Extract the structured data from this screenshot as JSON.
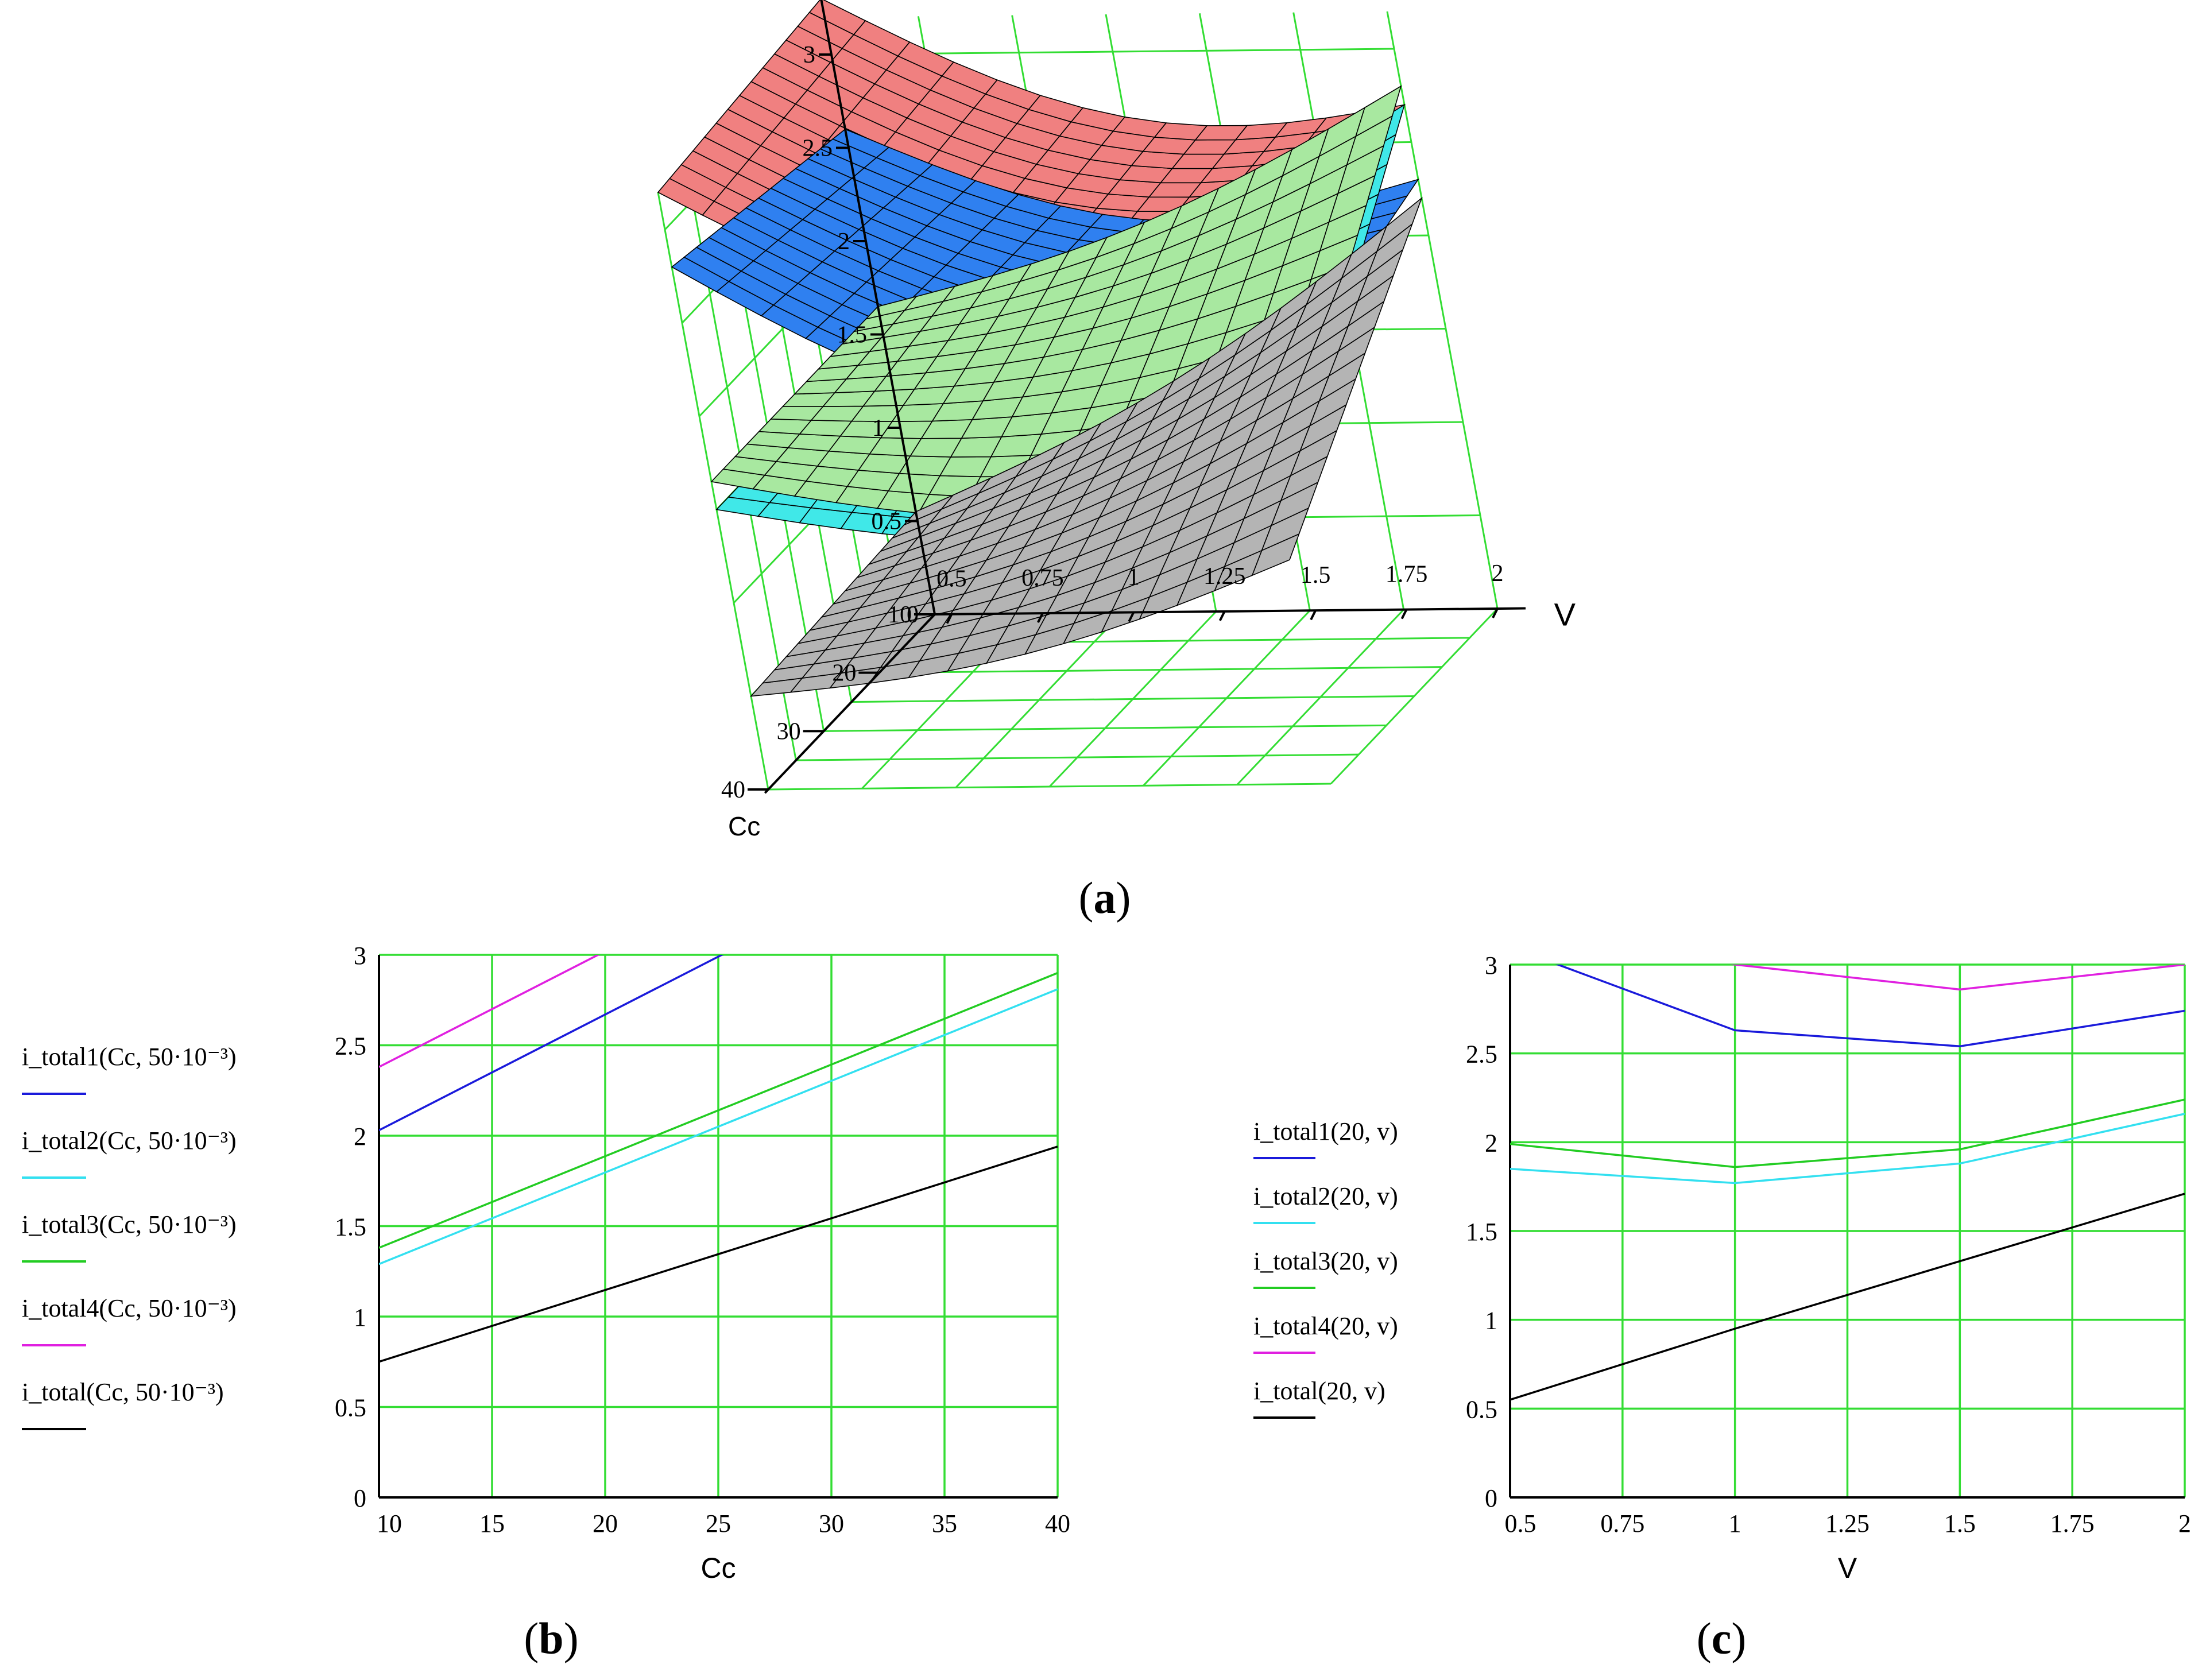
{
  "colors": {
    "grid": "#33dd33",
    "axis": "#000000",
    "i_total1": "#1a1adb",
    "i_total2": "#33e0f0",
    "i_total3": "#22cc22",
    "i_total4": "#e020e0",
    "i_total": "#000000",
    "surface_red": "#f08080",
    "surface_blue": "#2f80f0",
    "surface_cyan": "#40e8e8",
    "surface_green": "#a8e8a0",
    "surface_gray": "#b4b4b4"
  },
  "panels": {
    "a": {
      "label_open": "(",
      "label_letter": "a",
      "label_close": ")"
    },
    "b": {
      "label_open": "(",
      "label_letter": "b",
      "label_close": ")"
    },
    "c": {
      "label_open": "(",
      "label_letter": "c",
      "label_close": ")"
    }
  },
  "chart_data": [
    {
      "id": "a",
      "type": "surface",
      "x_axis_label": "V",
      "y_axis_label": "Cc",
      "x_ticks": [
        "0.5",
        "0.75",
        "1",
        "1.25",
        "1.5",
        "1.75",
        "2"
      ],
      "y_ticks": [
        "10",
        "20",
        "30",
        "40"
      ],
      "z_ticks": [
        "0",
        "0.5",
        "1",
        "1.5",
        "2",
        "2.5",
        "3"
      ],
      "zlim": [
        0,
        3
      ],
      "surfaces": [
        {
          "color": "surface_red",
          "z_at_corners": {
            "v_min_cc_min": 3.3,
            "v_max_cc_min": 2.7,
            "v_min_cc_max": 3.2,
            "v_max_cc_max": 2.55
          }
        },
        {
          "color": "surface_blue",
          "z_at_corners": {
            "v_min_cc_min": 2.6,
            "v_max_cc_min": 2.3,
            "v_min_cc_max": 2.8,
            "v_max_cc_max": 2.0
          }
        },
        {
          "color": "surface_cyan",
          "z_at_corners": {
            "v_min_cc_min": 1.5,
            "v_max_cc_min": 2.7,
            "v_min_cc_max": 1.5,
            "v_max_cc_max": 1.4
          }
        },
        {
          "color": "surface_green",
          "z_at_corners": {
            "v_min_cc_min": 1.65,
            "v_max_cc_min": 2.8,
            "v_min_cc_max": 1.65,
            "v_max_cc_max": 1.5
          }
        },
        {
          "color": "surface_gray",
          "z_at_corners": {
            "v_min_cc_min": 0.55,
            "v_max_cc_min": 2.2,
            "v_min_cc_max": 0.5,
            "v_max_cc_max": 1.2
          }
        }
      ]
    },
    {
      "id": "b",
      "type": "line",
      "xlabel": "Cc",
      "x_ticks": [
        "10",
        "15",
        "20",
        "25",
        "30",
        "35",
        "40"
      ],
      "y_ticks": [
        "0",
        "0.5",
        "1",
        "1.5",
        "2",
        "2.5",
        "3"
      ],
      "xlim": [
        10,
        40
      ],
      "ylim": [
        0,
        3
      ],
      "series": [
        {
          "name": "i_total1(Cc, 50·10⁻³)",
          "color": "i_total1",
          "x": [
            10,
            40
          ],
          "y": [
            2.03,
            3.95
          ]
        },
        {
          "name": "i_total2(Cc, 50·10⁻³)",
          "color": "i_total2",
          "x": [
            10,
            40
          ],
          "y": [
            1.29,
            2.81
          ]
        },
        {
          "name": "i_total3(Cc, 50·10⁻³)",
          "color": "i_total3",
          "x": [
            10,
            40
          ],
          "y": [
            1.38,
            2.9
          ]
        },
        {
          "name": "i_total4(Cc, 50·10⁻³)",
          "color": "i_total4",
          "x": [
            10,
            40
          ],
          "y": [
            2.38,
            4.3
          ]
        },
        {
          "name": "i_total(Cc, 50·10⁻³)",
          "color": "i_total",
          "x": [
            10,
            40
          ],
          "y": [
            0.75,
            1.94
          ]
        }
      ]
    },
    {
      "id": "c",
      "type": "line",
      "xlabel": "V",
      "x_ticks": [
        "0.5",
        "0.75",
        "1",
        "1.25",
        "1.5",
        "1.75",
        "2"
      ],
      "y_ticks": [
        "0",
        "0.5",
        "1",
        "1.5",
        "2",
        "2.5",
        "3"
      ],
      "xlim": [
        0.5,
        2
      ],
      "ylim": [
        0,
        3
      ],
      "series": [
        {
          "name": "i_total1(20, v)",
          "color": "i_total1",
          "x": [
            0.5,
            1,
            1.5,
            2
          ],
          "y": [
            3.1,
            2.63,
            2.54,
            2.74
          ]
        },
        {
          "name": "i_total2(20, v)",
          "color": "i_total2",
          "x": [
            0.5,
            1,
            1.5,
            2
          ],
          "y": [
            1.85,
            1.77,
            1.88,
            2.16
          ]
        },
        {
          "name": "i_total3(20, v)",
          "color": "i_total3",
          "x": [
            0.5,
            1,
            1.5,
            2
          ],
          "y": [
            1.99,
            1.86,
            1.96,
            2.24
          ]
        },
        {
          "name": "i_total4(20, v)",
          "color": "i_total4",
          "x": [
            0.5,
            1,
            1.5,
            2
          ],
          "y": [
            3.25,
            3.0,
            2.86,
            3.0
          ]
        },
        {
          "name": "i_total(20, v)",
          "color": "i_total",
          "x": [
            0.5,
            1,
            1.5,
            2
          ],
          "y": [
            0.55,
            0.95,
            1.33,
            1.71
          ]
        }
      ]
    }
  ]
}
